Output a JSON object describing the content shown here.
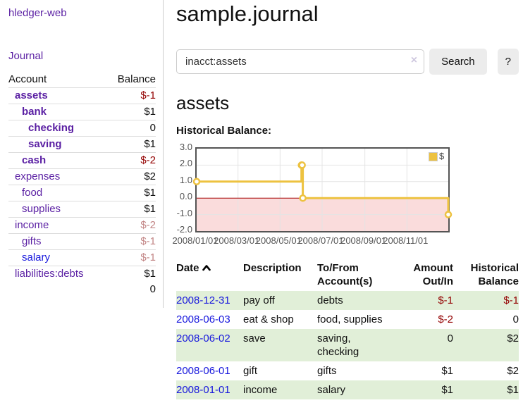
{
  "brand": "hledger-web",
  "nav": {
    "journal_label": "Journal"
  },
  "sidebar_table": {
    "headers": {
      "account": "Account",
      "balance": "Balance"
    },
    "rows": [
      {
        "account": "assets",
        "balance": "$-1",
        "depth": 1,
        "bold": true,
        "link": "purple",
        "neg": "dark"
      },
      {
        "account": "bank",
        "balance": "$1",
        "depth": 2,
        "bold": true,
        "link": "purple",
        "neg": null
      },
      {
        "account": "checking",
        "balance": "0",
        "depth": 3,
        "bold": true,
        "link": "purple",
        "neg": null
      },
      {
        "account": "saving",
        "balance": "$1",
        "depth": 3,
        "bold": true,
        "link": "purple",
        "neg": null
      },
      {
        "account": "cash",
        "balance": "$-2",
        "depth": 2,
        "bold": true,
        "link": "purple",
        "neg": "dark"
      },
      {
        "account": "expenses",
        "balance": "$2",
        "depth": 1,
        "bold": false,
        "link": "purple",
        "neg": null
      },
      {
        "account": "food",
        "balance": "$1",
        "depth": 2,
        "bold": false,
        "link": "purple",
        "neg": null
      },
      {
        "account": "supplies",
        "balance": "$1",
        "depth": 2,
        "bold": false,
        "link": "purple",
        "neg": null
      },
      {
        "account": "income",
        "balance": "$-2",
        "depth": 1,
        "bold": false,
        "link": "purple",
        "neg": "rose"
      },
      {
        "account": "gifts",
        "balance": "$-1",
        "depth": 2,
        "bold": false,
        "link": "purple",
        "neg": "rose"
      },
      {
        "account": "salary",
        "balance": "$-1",
        "depth": 2,
        "bold": false,
        "link": "blue",
        "neg": "rose"
      },
      {
        "account": "liabilities:debts",
        "balance": "$1",
        "depth": 1,
        "bold": false,
        "link": "purple",
        "neg": null
      }
    ],
    "total": "0"
  },
  "header": {
    "title": "sample.journal"
  },
  "search": {
    "value": "inacct:assets",
    "clear_icon": "×",
    "button_label": "Search",
    "help_label": "?"
  },
  "account_page": {
    "title": "assets",
    "chart_label": "Historical Balance:"
  },
  "chart_data": {
    "type": "line",
    "title": "Historical Balance",
    "line_style": "steps",
    "series": [
      {
        "name": "$",
        "color": "#EDC240",
        "marker": "open-circle",
        "points": [
          [
            "2008-01-01",
            1
          ],
          [
            "2008-06-01",
            2
          ],
          [
            "2008-06-02",
            2
          ],
          [
            "2008-06-03",
            0
          ],
          [
            "2008-12-31",
            -1
          ]
        ]
      }
    ],
    "xrange": [
      "2008-01-01",
      "2008-12-31"
    ],
    "ylim": [
      -2,
      3
    ],
    "yticks": [
      "3.0",
      "2.0",
      "1.0",
      "0.0",
      "-1.0",
      "-2.0"
    ],
    "xticks": [
      "2008/01/01",
      "2008/03/01",
      "2008/05/01",
      "2008/07/01",
      "2008/09/01",
      "2008/11/01"
    ],
    "legend_position": "top-right",
    "grid": true,
    "grid_color": "#e4e4e4",
    "border_color": "#545454",
    "negative_region_color": "#fadcdc",
    "zero_line_color": "#a40000"
  },
  "register_table": {
    "sort_icon": "chevron-up",
    "headers": {
      "date": "Date",
      "description": "Description",
      "accounts": "To/From Account(s)",
      "amount": "Amount Out/In",
      "balance": "Historical Balance"
    },
    "rows": [
      {
        "date": "2008-12-31",
        "description": "pay off",
        "accounts": "debts",
        "amount": "$-1",
        "amount_neg": true,
        "balance": "$-1",
        "balance_neg": true,
        "highlight": true
      },
      {
        "date": "2008-06-03",
        "description": "eat & shop",
        "accounts": "food, supplies",
        "amount": "$-2",
        "amount_neg": true,
        "balance": "0",
        "balance_neg": false,
        "highlight": false
      },
      {
        "date": "2008-06-02",
        "description": "save",
        "accounts": "saving, checking",
        "amount": "0",
        "amount_neg": false,
        "balance": "$2",
        "balance_neg": false,
        "highlight": true
      },
      {
        "date": "2008-06-01",
        "description": "gift",
        "accounts": "gifts",
        "amount": "$1",
        "amount_neg": false,
        "balance": "$2",
        "balance_neg": false,
        "highlight": false
      },
      {
        "date": "2008-01-01",
        "description": "income",
        "accounts": "salary",
        "amount": "$1",
        "amount_neg": false,
        "balance": "$1",
        "balance_neg": false,
        "highlight": true
      }
    ]
  }
}
